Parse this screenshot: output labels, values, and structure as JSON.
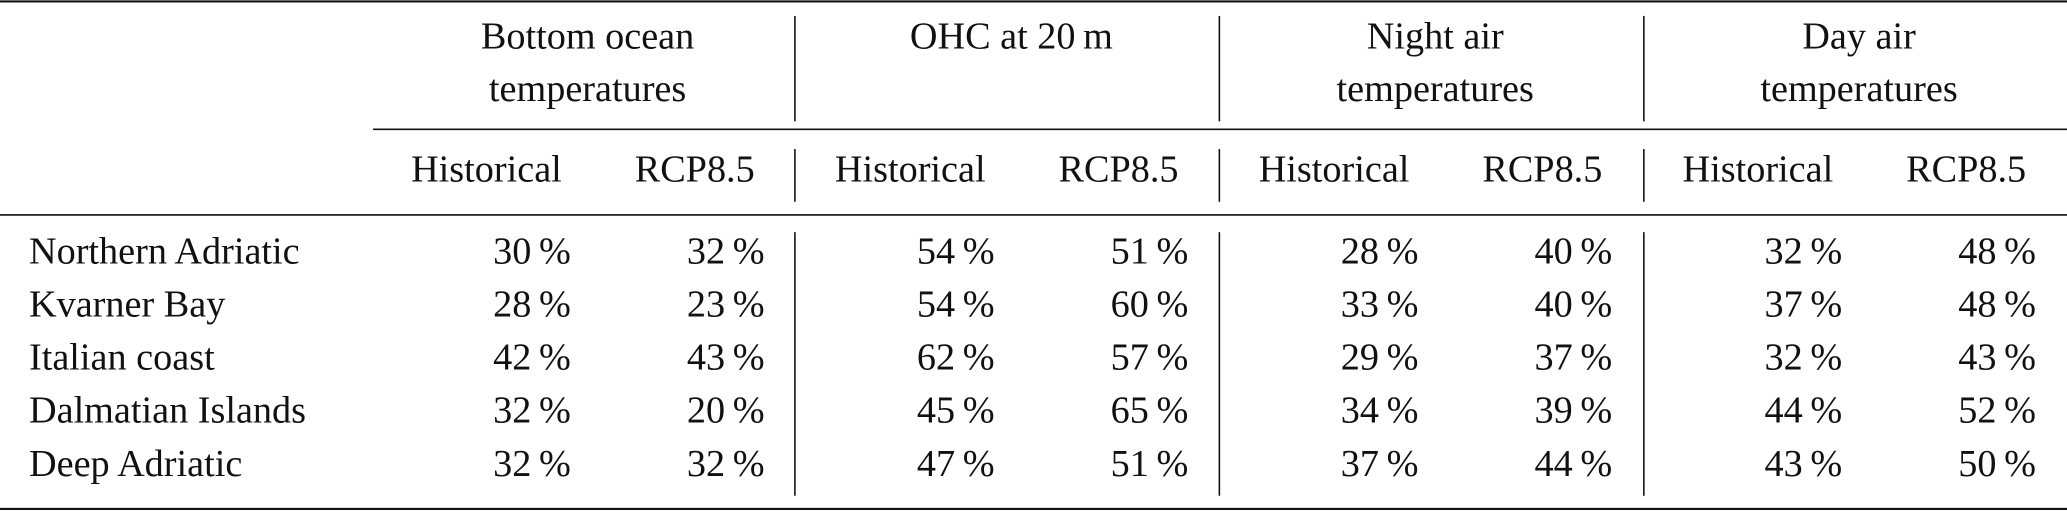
{
  "table": {
    "groups": [
      {
        "title_lines": [
          "Bottom ocean",
          "temperatures"
        ],
        "subheaders": [
          "Historical",
          "RCP8.5"
        ]
      },
      {
        "title_lines": [
          "OHC at 20 m"
        ],
        "subheaders": [
          "Historical",
          "RCP8.5"
        ]
      },
      {
        "title_lines": [
          "Night air",
          "temperatures"
        ],
        "subheaders": [
          "Historical",
          "RCP8.5"
        ]
      },
      {
        "title_lines": [
          "Day air",
          "temperatures"
        ],
        "subheaders": [
          "Historical",
          "RCP8.5"
        ]
      }
    ],
    "rows": [
      {
        "label": "Northern Adriatic",
        "cells": [
          "30 %",
          "32 %",
          "54 %",
          "51 %",
          "28 %",
          "40 %",
          "32 %",
          "48 %"
        ]
      },
      {
        "label": "Kvarner Bay",
        "cells": [
          "28 %",
          "23 %",
          "54 %",
          "60 %",
          "33 %",
          "40 %",
          "37 %",
          "48 %"
        ]
      },
      {
        "label": "Italian coast",
        "cells": [
          "42 %",
          "43 %",
          "62 %",
          "57 %",
          "29 %",
          "37 %",
          "32 %",
          "43 %"
        ]
      },
      {
        "label": "Dalmatian Islands",
        "cells": [
          "32 %",
          "20 %",
          "45 %",
          "65 %",
          "34 %",
          "39 %",
          "44 %",
          "52 %"
        ]
      },
      {
        "label": "Deep Adriatic",
        "cells": [
          "32 %",
          "32 %",
          "47 %",
          "51 %",
          "37 %",
          "44 %",
          "43 %",
          "50 %"
        ]
      }
    ]
  }
}
